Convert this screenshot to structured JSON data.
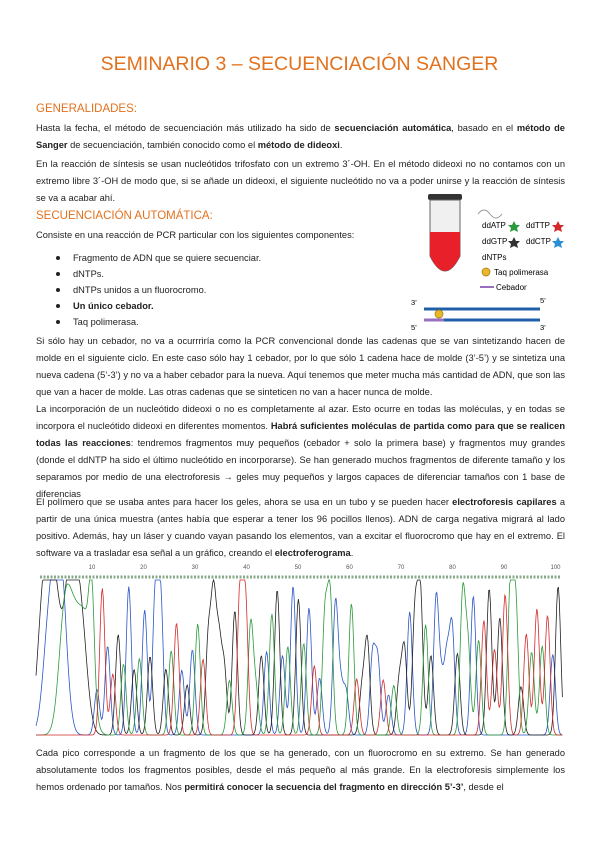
{
  "header": {
    "title": "SEMINARIO 3 – SECUENCIACIÓN SANGER"
  },
  "sections": [
    {
      "heading": "GENERALIDADES:",
      "paragraphs": [
        [
          "Hasta la fecha, el método de secuenciación más utilizado ha sido de ",
          {
            "text": "secuenciación automática",
            "bold": true
          },
          ", basado en el ",
          {
            "text": "método de Sanger",
            "bold": true
          },
          " de secuenciación, también conocido como el ",
          {
            "text": "método de dideoxi",
            "bold": true
          },
          "."
        ],
        [
          "En la reacción de síntesis se usan nucleótidos trifosfato con un extremo 3´-OH. En el método dideoxi no no contamos con un extremo libre 3´-OH de modo que, si se añade un dideoxi, el siguiente nucleótido no va a poder unirse y la reacción de síntesis se va a acabar ahí."
        ]
      ]
    },
    {
      "heading": "SECUENCIACIÓN AUTOMÁTICA:",
      "intro": [
        "Consiste en una reacción de PCR particular con los siguientes componentes:"
      ],
      "bullets": [
        "Fragmento de ADN que se quiere secuenciar.",
        "dNTPs.",
        "dNTPs unidos a un fluorocromo.",
        {
          "text": "Un único cebador.",
          "bold": true
        },
        "Taq polimerasa."
      ],
      "paragraphs": [
        [
          "Si sólo hay un cebador, no va a ocurrriría como la PCR convencional donde las cadenas que se van sintetizando hacen de molde en el siguiente ciclo. En este caso sólo hay 1 cebador, por lo que sólo 1 cadena hace de molde (3’-5’) y se sintetiza una nueva cadena (5’-3’) y no va a haber cebador para la nueva. Aquí tenemos que meter mucha más cantidad de ADN, que son las que van a hacer de molde. Las otras cadenas que se sinteticen no van a hacer nunca de molde."
        ],
        [
          "La incorporación de un nucleótido dideoxi o no es completamente al azar. Esto ocurre en todas las moléculas, y en todas se incorpora el nucleótido dideoxi en diferentes momentos. ",
          {
            "text": "Habrá suficientes moléculas de partida como para que se realicen todas las reacciones",
            "bold": true
          },
          ": tendremos fragmentos muy pequeños (cebador + solo la primera base) y fragmentos muy grandes (donde el ddNTP ha sido el último nucleótido en incorporarse). Se han generado muchos fragmentos de diferente tamaño y los separamos por medio de una electroforesis → geles muy pequeños y largos capaces de diferenciar tamaños con 1 base de diferencias"
        ],
        [
          "El polímero que se usaba antes para hacer los geles, ahora se usa en un tubo y se pueden hacer ",
          {
            "text": "electroforesis capilares",
            "bold": true
          },
          " a partir de una única muestra (antes había que esperar a tener los 96 pocillos llenos). ADN de carga negativa migrará al lado positivo. Además, hay un láser y cuando vayan pasando los elementos, van a excitar el fluorocromo que hay en el extremo. El software va a trasladar esa señal a un gráfico, creando el ",
          {
            "text": "electroferograma",
            "bold": true
          },
          "."
        ],
        [
          "Cada pico corresponde a un fragmento de los que se ha generado, con un fluorocromo en su extremo. Se han generado absolutamente todos los fragmentos posibles, desde el más pequeño al más grande. En la electroforesis simplemente los hemos ordenado por tamaños. Nos ",
          {
            "text": "permitirá conocer la secuencia del fragmento en dirección 5’-3’",
            "bold": true
          },
          ", desde el"
        ]
      ]
    }
  ],
  "figure": {
    "labels": [
      "ddATP",
      "ddTTP",
      "ddGTP",
      "ddCTP",
      "dNTPs",
      "Taq polimerasa",
      "Cebador"
    ],
    "strand_ends": [
      "3’",
      "5’",
      "5’",
      "3’"
    ]
  },
  "chromatogram": {
    "positions": [
      10,
      20,
      30,
      40,
      50,
      60,
      70,
      80,
      90,
      100
    ]
  }
}
